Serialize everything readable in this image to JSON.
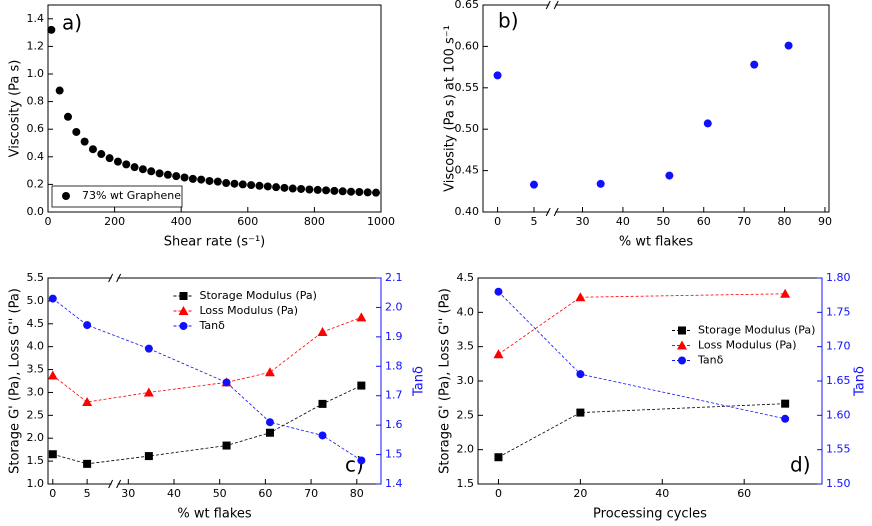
{
  "chart_data": [
    {
      "type": "scatter",
      "panel_label": "a)",
      "x_label": "Shear rate (s⁻¹)",
      "y_label": "Viscosity (Pa s)",
      "x": [
        10,
        35,
        60,
        85,
        110,
        135,
        160,
        185,
        210,
        235,
        260,
        285,
        310,
        335,
        360,
        385,
        410,
        435,
        460,
        485,
        510,
        535,
        560,
        585,
        610,
        635,
        660,
        685,
        710,
        735,
        760,
        785,
        810,
        835,
        860,
        885,
        910,
        935,
        960,
        985
      ],
      "series": [
        {
          "name": "73% wt Graphene",
          "color": "#000000",
          "marker": "circle",
          "values": [
            1.32,
            0.88,
            0.69,
            0.58,
            0.51,
            0.455,
            0.42,
            0.39,
            0.365,
            0.345,
            0.325,
            0.31,
            0.295,
            0.28,
            0.27,
            0.26,
            0.25,
            0.24,
            0.235,
            0.225,
            0.22,
            0.21,
            0.205,
            0.2,
            0.195,
            0.19,
            0.185,
            0.18,
            0.175,
            0.17,
            0.167,
            0.163,
            0.16,
            0.157,
            0.153,
            0.15,
            0.147,
            0.145,
            0.142,
            0.14
          ]
        }
      ],
      "xlim": [
        0,
        1000
      ],
      "xticks": [
        0,
        200,
        400,
        600,
        800,
        1000
      ],
      "ylim": [
        0,
        1.5
      ],
      "yticks": [
        {
          "value": 0,
          "label": "0.0"
        },
        0.2,
        0.4,
        0.6,
        0.8,
        {
          "value": 1,
          "label": "1.0"
        },
        1.2,
        1.4
      ],
      "legend": "lower left"
    },
    {
      "type": "scatter",
      "panel_label": "b)",
      "x_label": "% wt flakes",
      "y_label": "Viscosity (Pa s) at 100 s⁻¹",
      "x": [
        0,
        5,
        34.5,
        51.5,
        61,
        72.5,
        81
      ],
      "series": [
        {
          "color": "#1010ff",
          "marker": "circle",
          "values": [
            0.565,
            0.433,
            0.434,
            0.444,
            0.507,
            0.578,
            0.601
          ]
        }
      ],
      "xlim": [
        -2,
        91
      ],
      "x_break": [
        7.5,
        22.5
      ],
      "xticks": [
        0,
        5,
        30,
        40,
        50,
        60,
        70,
        80,
        90
      ],
      "ylim": [
        0.4,
        0.65
      ],
      "yticks": [
        {
          "value": 0.4,
          "label": "0.40"
        },
        0.45,
        {
          "value": 0.5,
          "label": "0.50"
        },
        0.55,
        {
          "value": 0.6,
          "label": "0.60"
        },
        0.65
      ]
    },
    {
      "type": "line",
      "panel_label": "c)",
      "x_label": "% wt flakes",
      "y_label": "Storage G' (Pa), Loss G'' (Pa)",
      "y2_label": "Tanδ",
      "y2_color": "#1010ff",
      "x": [
        0,
        5,
        34.5,
        51.5,
        61,
        72.5,
        81
      ],
      "series": [
        {
          "name": "Storage Modulus (Pa)",
          "color": "#000000",
          "marker": "square",
          "values": [
            1.65,
            1.44,
            1.61,
            1.84,
            2.12,
            2.75,
            3.15
          ]
        },
        {
          "name": "Loss Modulus (Pa)",
          "color": "#ff0000",
          "marker": "triangle",
          "values": [
            3.37,
            2.79,
            3.0,
            3.22,
            3.44,
            4.32,
            4.64
          ]
        },
        {
          "name": "Tanδ",
          "color": "#1010ff",
          "marker": "circle",
          "axis": "y2",
          "values": [
            2.03,
            1.94,
            1.86,
            1.745,
            1.61,
            1.565,
            1.48
          ]
        }
      ],
      "xlim": [
        -0.7,
        85.3
      ],
      "x_break": [
        9,
        27
      ],
      "xticks": [
        0,
        5,
        30,
        40,
        50,
        60,
        70,
        80
      ],
      "ylim": [
        1,
        5.5
      ],
      "yticks": [
        {
          "value": 1,
          "label": "1.0"
        },
        1.5,
        {
          "value": 2,
          "label": "2.0"
        },
        2.5,
        {
          "value": 3,
          "label": "3.0"
        },
        3.5,
        {
          "value": 4,
          "label": "4.0"
        },
        4.5,
        {
          "value": 5,
          "label": "5.0"
        },
        5.5
      ],
      "y2lim": [
        1.4,
        2.1
      ],
      "y2ticks": [
        1.4,
        1.5,
        1.6,
        1.7,
        1.8,
        1.9,
        {
          "value": 2,
          "label": "2.0"
        },
        2.1
      ],
      "legend": "upper center"
    },
    {
      "type": "line",
      "panel_label": "d)",
      "x_label": "Processing cycles",
      "y_label": "Storage G' (Pa), Loss G'' (Pa)",
      "y2_label": "Tanδ",
      "y2_color": "#1010ff",
      "x": [
        0,
        20,
        70
      ],
      "series": [
        {
          "name": "Storage Modulus (Pa)",
          "color": "#000000",
          "marker": "square",
          "values": [
            1.89,
            2.54,
            2.67
          ]
        },
        {
          "name": "Loss Modulus (Pa)",
          "color": "#ff0000",
          "marker": "triangle",
          "values": [
            3.39,
            4.22,
            4.27
          ]
        },
        {
          "name": "Tanδ",
          "color": "#1010ff",
          "marker": "circle",
          "axis": "y2",
          "values": [
            1.78,
            1.66,
            1.595
          ]
        }
      ],
      "xlim": [
        -5,
        79
      ],
      "xticks": [
        0,
        20,
        40,
        60
      ],
      "ylim": [
        1.5,
        4.5
      ],
      "yticks": [
        1.5,
        {
          "value": 2,
          "label": "2.0"
        },
        2.5,
        {
          "value": 3,
          "label": "3.0"
        },
        3.5,
        {
          "value": 4,
          "label": "4.0"
        },
        4.5
      ],
      "y2lim": [
        1.5,
        1.8
      ],
      "y2ticks": [
        {
          "value": 1.5,
          "label": "1.50"
        },
        1.55,
        {
          "value": 1.6,
          "label": "1.60"
        },
        1.65,
        {
          "value": 1.7,
          "label": "1.70"
        },
        1.75,
        {
          "value": 1.8,
          "label": "1.80"
        }
      ],
      "legend": "center right"
    }
  ]
}
